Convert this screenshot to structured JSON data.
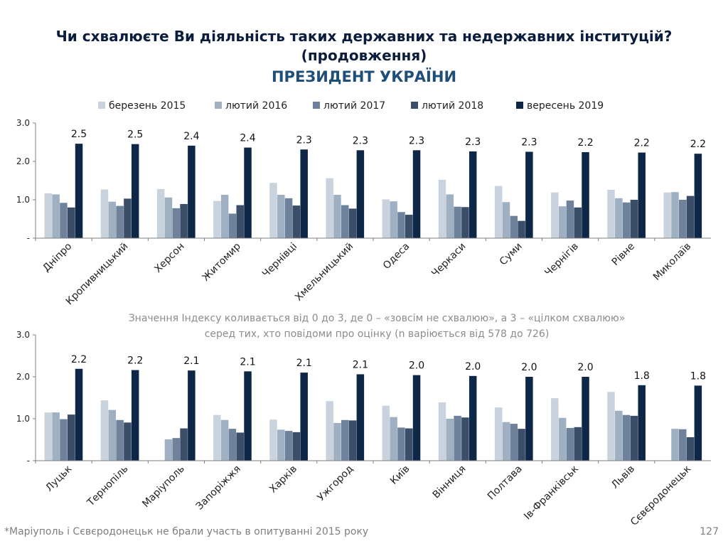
{
  "header": {
    "title_line1": "Чи схвалюєте Ви діяльність таких державних та недержавних інституцій?",
    "title_line2": "(продовження)",
    "subtitle": "ПРЕЗИДЕНТ УКРАЇНИ"
  },
  "legend": [
    {
      "label": "березень 2015",
      "color": "#c9d3de"
    },
    {
      "label": "лютий 2016",
      "color": "#9fb0c3"
    },
    {
      "label": "лютий 2017",
      "color": "#6e839b"
    },
    {
      "label": "лютий 2018",
      "color": "#3b4e69"
    },
    {
      "label": "вересень 2019",
      "color": "#0f2747"
    }
  ],
  "note": {
    "line1": "Значення Індексу коливається від 0 до 3, де 0 – «зовсім не схвалюю», а 3 – «цілком схвалюю»",
    "line2": "серед тих, хто повідоми про оцінку (n варіюється від 578 до 726)"
  },
  "footnote": "*Маріуполь і Сєвєродонецьк не брали участь в опитуванні 2015 року",
  "page_number": "127",
  "chart_data": [
    {
      "type": "bar",
      "ylim": [
        0,
        3
      ],
      "yticks": [
        "-",
        "1.0",
        "2.0",
        "3.0"
      ],
      "categories": [
        "Дніпро",
        "Кропивницький",
        "Херсон",
        "Житомир",
        "Чернівці",
        "Хмельницький",
        "Одеса",
        "Черкаси",
        "Суми",
        "Чернігів",
        "Рівне",
        "Миколаїв"
      ],
      "series": [
        {
          "name": "березень 2015",
          "values": [
            1.17,
            1.27,
            1.28,
            0.97,
            1.44,
            1.56,
            1.01,
            1.52,
            1.36,
            1.19,
            1.26,
            1.19
          ]
        },
        {
          "name": "лютий 2016",
          "values": [
            1.14,
            0.95,
            1.06,
            1.13,
            1.13,
            1.13,
            0.96,
            1.14,
            0.94,
            0.83,
            1.04,
            1.2
          ]
        },
        {
          "name": "лютий 2017",
          "values": [
            0.92,
            0.84,
            0.78,
            0.64,
            1.04,
            0.86,
            0.68,
            0.82,
            0.58,
            0.98,
            0.93,
            1.0
          ]
        },
        {
          "name": "лютий 2018",
          "values": [
            0.8,
            1.03,
            0.89,
            0.86,
            0.85,
            0.77,
            0.61,
            0.81,
            0.45,
            0.8,
            1.0,
            1.1
          ]
        },
        {
          "name": "вересень 2019",
          "values": [
            2.46,
            2.45,
            2.41,
            2.36,
            2.31,
            2.29,
            2.29,
            2.26,
            2.25,
            2.24,
            2.23,
            2.2
          ]
        }
      ],
      "data_labels": [
        "2.5",
        "2.5",
        "2.4",
        "2.4",
        "2.3",
        "2.3",
        "2.3",
        "2.3",
        "2.3",
        "2.2",
        "2.2",
        "2.2"
      ]
    },
    {
      "type": "bar",
      "ylim": [
        0,
        3
      ],
      "yticks": [
        "-",
        "1.0",
        "2.0",
        "3.0"
      ],
      "categories": [
        "Луцьк",
        "Тернопіль",
        "Маріуполь",
        "Запоріжжя",
        "Харків",
        "Ужгород",
        "Київ",
        "Вінниця",
        "Полтава",
        "Ів-Франківськ",
        "Львів",
        "Сєвєродонецьк"
      ],
      "series": [
        {
          "name": "березень 2015",
          "values": [
            1.15,
            1.44,
            null,
            1.09,
            0.98,
            1.42,
            1.31,
            1.39,
            1.27,
            1.49,
            1.64,
            null
          ]
        },
        {
          "name": "лютий 2016",
          "values": [
            1.15,
            1.21,
            0.51,
            0.97,
            0.74,
            0.9,
            1.04,
            1.0,
            0.92,
            1.02,
            1.19,
            0.76
          ]
        },
        {
          "name": "лютий 2017",
          "values": [
            0.99,
            0.97,
            0.54,
            0.76,
            0.71,
            0.97,
            0.79,
            1.07,
            0.88,
            0.78,
            1.09,
            0.75
          ]
        },
        {
          "name": "лютий 2018",
          "values": [
            1.1,
            0.91,
            0.77,
            0.67,
            0.68,
            0.96,
            0.77,
            1.03,
            0.76,
            0.8,
            1.07,
            0.56
          ]
        },
        {
          "name": "вересень 2019",
          "values": [
            2.19,
            2.16,
            2.15,
            2.13,
            2.1,
            2.06,
            2.04,
            2.02,
            2.0,
            2.0,
            1.8,
            1.79
          ]
        }
      ],
      "data_labels": [
        "2.2",
        "2.2",
        "2.1",
        "2.1",
        "2.1",
        "2.1",
        "2.0",
        "2.0",
        "2.0",
        "2.0",
        "1.8",
        "1.8"
      ]
    }
  ]
}
